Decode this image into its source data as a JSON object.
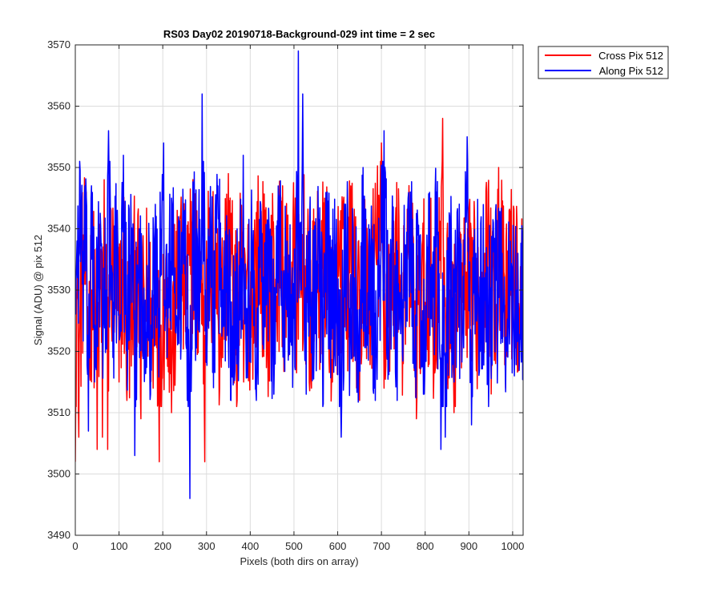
{
  "chart_data": {
    "type": "line",
    "title": "RS03 Day02 20190718-Background-029 int time = 2 sec",
    "xlabel": "Pixels (both dirs on array)",
    "ylabel": "Signal (ADU) @ pix 512",
    "xlim": [
      0,
      1024
    ],
    "ylim": [
      3490,
      3570
    ],
    "xticks": [
      0,
      100,
      200,
      300,
      400,
      500,
      600,
      700,
      800,
      900,
      1000
    ],
    "yticks": [
      3490,
      3500,
      3510,
      3520,
      3530,
      3540,
      3550,
      3560,
      3570
    ],
    "grid": true,
    "legend_position": "outside-top-right",
    "series": [
      {
        "name": "Cross Pix 512",
        "color": "#ff0000",
        "anchors": [
          [
            0,
            3502
          ],
          [
            4,
            3529
          ],
          [
            8,
            3506
          ],
          [
            15,
            3532
          ],
          [
            22,
            3540
          ],
          [
            30,
            3517
          ],
          [
            38,
            3530
          ],
          [
            46,
            3523
          ],
          [
            50,
            3504
          ],
          [
            58,
            3536
          ],
          [
            62,
            3506
          ],
          [
            66,
            3548
          ],
          [
            74,
            3504
          ],
          [
            80,
            3540
          ],
          [
            92,
            3527
          ],
          [
            100,
            3515
          ],
          [
            110,
            3540
          ],
          [
            118,
            3512
          ],
          [
            130,
            3522
          ],
          [
            140,
            3537
          ],
          [
            150,
            3509
          ],
          [
            165,
            3532
          ],
          [
            170,
            3524
          ],
          [
            178,
            3514
          ],
          [
            184,
            3538
          ],
          [
            192,
            3502
          ],
          [
            200,
            3523
          ],
          [
            210,
            3530
          ],
          [
            220,
            3510
          ],
          [
            232,
            3527
          ],
          [
            240,
            3542
          ],
          [
            250,
            3526
          ],
          [
            262,
            3534
          ],
          [
            270,
            3546
          ],
          [
            280,
            3527
          ],
          [
            290,
            3531
          ],
          [
            296,
            3502
          ],
          [
            300,
            3538
          ],
          [
            310,
            3530
          ],
          [
            320,
            3542
          ],
          [
            330,
            3514
          ],
          [
            342,
            3534
          ],
          [
            350,
            3549
          ],
          [
            360,
            3530
          ],
          [
            370,
            3512
          ],
          [
            378,
            3537
          ],
          [
            385,
            3515
          ],
          [
            392,
            3533
          ],
          [
            400,
            3522
          ],
          [
            412,
            3537
          ],
          [
            420,
            3541
          ],
          [
            430,
            3536
          ],
          [
            440,
            3522
          ],
          [
            452,
            3540
          ],
          [
            460,
            3529
          ],
          [
            470,
            3545
          ],
          [
            480,
            3525
          ],
          [
            490,
            3532
          ],
          [
            500,
            3538
          ],
          [
            510,
            3522
          ],
          [
            522,
            3541
          ],
          [
            530,
            3528
          ],
          [
            540,
            3514
          ],
          [
            550,
            3538
          ],
          [
            560,
            3523
          ],
          [
            570,
            3545
          ],
          [
            578,
            3531
          ],
          [
            588,
            3515
          ],
          [
            596,
            3528
          ],
          [
            604,
            3535
          ],
          [
            612,
            3540
          ],
          [
            620,
            3522
          ],
          [
            630,
            3547
          ],
          [
            640,
            3524
          ],
          [
            650,
            3512
          ],
          [
            660,
            3541
          ],
          [
            670,
            3521
          ],
          [
            680,
            3535
          ],
          [
            690,
            3543
          ],
          [
            700,
            3554
          ],
          [
            706,
            3514
          ],
          [
            714,
            3532
          ],
          [
            722,
            3526
          ],
          [
            730,
            3536
          ],
          [
            740,
            3542
          ],
          [
            750,
            3518
          ],
          [
            760,
            3535
          ],
          [
            770,
            3540
          ],
          [
            780,
            3509
          ],
          [
            790,
            3530
          ],
          [
            800,
            3528
          ],
          [
            810,
            3536
          ],
          [
            820,
            3517
          ],
          [
            830,
            3530
          ],
          [
            840,
            3558
          ],
          [
            848,
            3520
          ],
          [
            856,
            3530
          ],
          [
            866,
            3510
          ],
          [
            876,
            3534
          ],
          [
            886,
            3528
          ],
          [
            896,
            3519
          ],
          [
            906,
            3536
          ],
          [
            916,
            3524
          ],
          [
            926,
            3530
          ],
          [
            936,
            3536
          ],
          [
            944,
            3546
          ],
          [
            952,
            3520
          ],
          [
            960,
            3532
          ],
          [
            968,
            3550
          ],
          [
            976,
            3536
          ],
          [
            984,
            3514
          ],
          [
            992,
            3543
          ],
          [
            1000,
            3532
          ],
          [
            1008,
            3530
          ],
          [
            1016,
            3522
          ],
          [
            1024,
            3532
          ]
        ]
      },
      {
        "name": "Along Pix 512",
        "color": "#0000ff",
        "anchors": [
          [
            0,
            3530
          ],
          [
            4,
            3538
          ],
          [
            10,
            3551
          ],
          [
            16,
            3531
          ],
          [
            22,
            3547
          ],
          [
            30,
            3507
          ],
          [
            36,
            3545
          ],
          [
            44,
            3515
          ],
          [
            52,
            3537
          ],
          [
            62,
            3523
          ],
          [
            70,
            3530
          ],
          [
            76,
            3556
          ],
          [
            86,
            3519
          ],
          [
            96,
            3543
          ],
          [
            104,
            3526
          ],
          [
            110,
            3552
          ],
          [
            118,
            3524
          ],
          [
            128,
            3537
          ],
          [
            136,
            3503
          ],
          [
            146,
            3540
          ],
          [
            154,
            3520
          ],
          [
            164,
            3534
          ],
          [
            172,
            3513
          ],
          [
            182,
            3537
          ],
          [
            192,
            3527
          ],
          [
            202,
            3554
          ],
          [
            210,
            3519
          ],
          [
            220,
            3545
          ],
          [
            230,
            3523
          ],
          [
            240,
            3532
          ],
          [
            250,
            3543
          ],
          [
            256,
            3512
          ],
          [
            262,
            3496
          ],
          [
            270,
            3546
          ],
          [
            280,
            3526
          ],
          [
            290,
            3562
          ],
          [
            298,
            3530
          ],
          [
            308,
            3542
          ],
          [
            318,
            3521
          ],
          [
            326,
            3547
          ],
          [
            338,
            3524
          ],
          [
            348,
            3539
          ],
          [
            356,
            3512
          ],
          [
            366,
            3533
          ],
          [
            374,
            3522
          ],
          [
            384,
            3552
          ],
          [
            392,
            3527
          ],
          [
            404,
            3534
          ],
          [
            414,
            3512
          ],
          [
            424,
            3544
          ],
          [
            434,
            3524
          ],
          [
            444,
            3536
          ],
          [
            454,
            3513
          ],
          [
            464,
            3547
          ],
          [
            474,
            3524
          ],
          [
            484,
            3538
          ],
          [
            494,
            3521
          ],
          [
            504,
            3533
          ],
          [
            510,
            3569
          ],
          [
            516,
            3530
          ],
          [
            520,
            3562
          ],
          [
            528,
            3513
          ],
          [
            536,
            3542
          ],
          [
            546,
            3520
          ],
          [
            556,
            3538
          ],
          [
            566,
            3511
          ],
          [
            576,
            3546
          ],
          [
            586,
            3522
          ],
          [
            596,
            3535
          ],
          [
            608,
            3506
          ],
          [
            618,
            3544
          ],
          [
            628,
            3521
          ],
          [
            638,
            3532
          ],
          [
            648,
            3517
          ],
          [
            658,
            3550
          ],
          [
            668,
            3521
          ],
          [
            676,
            3536
          ],
          [
            686,
            3512
          ],
          [
            696,
            3534
          ],
          [
            706,
            3556
          ],
          [
            716,
            3520
          ],
          [
            726,
            3538
          ],
          [
            736,
            3512
          ],
          [
            746,
            3536
          ],
          [
            756,
            3524
          ],
          [
            766,
            3546
          ],
          [
            776,
            3520
          ],
          [
            786,
            3530
          ],
          [
            796,
            3513
          ],
          [
            806,
            3537
          ],
          [
            816,
            3524
          ],
          [
            826,
            3546
          ],
          [
            836,
            3504
          ],
          [
            846,
            3506
          ],
          [
            856,
            3542
          ],
          [
            866,
            3515
          ],
          [
            876,
            3532
          ],
          [
            886,
            3523
          ],
          [
            896,
            3555
          ],
          [
            906,
            3508
          ],
          [
            916,
            3536
          ],
          [
            926,
            3520
          ],
          [
            936,
            3532
          ],
          [
            946,
            3517
          ],
          [
            956,
            3541
          ],
          [
            966,
            3523
          ],
          [
            976,
            3536
          ],
          [
            986,
            3520
          ],
          [
            996,
            3530
          ],
          [
            1004,
            3516
          ],
          [
            1012,
            3536
          ],
          [
            1018,
            3522
          ],
          [
            1024,
            3528
          ]
        ]
      }
    ]
  }
}
